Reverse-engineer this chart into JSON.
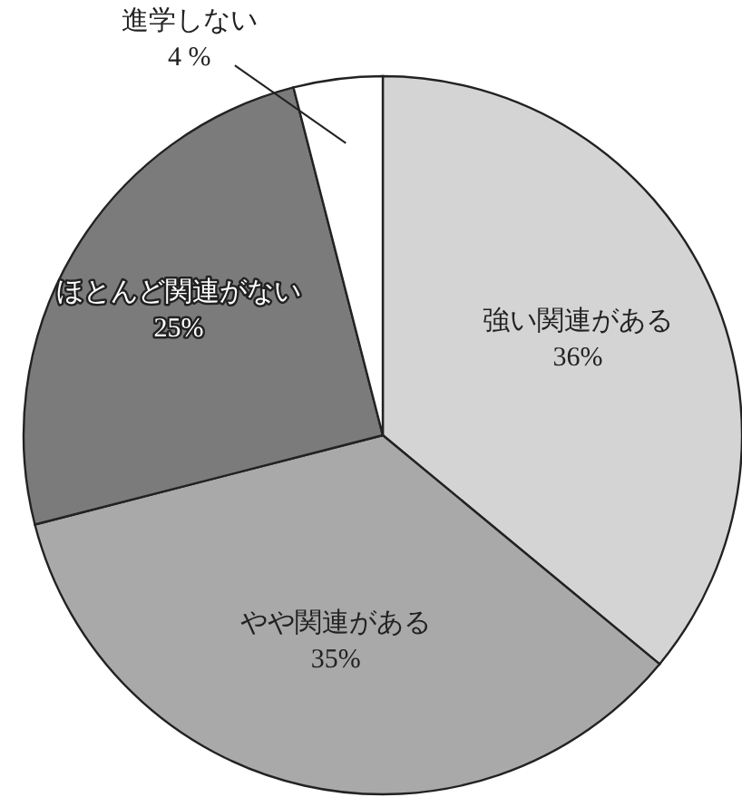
{
  "chart_data": {
    "type": "pie",
    "categories": [
      "強い関連がある",
      "やや関連がある",
      "ほとんど関連がない",
      "進学しない"
    ],
    "values": [
      36,
      35,
      25,
      4
    ],
    "value_labels": [
      "36%",
      "35%",
      "25%",
      "4 %"
    ],
    "colors": [
      "#d4d4d4",
      "#a9a9a9",
      "#7b7b7b",
      "#ffffff"
    ]
  }
}
